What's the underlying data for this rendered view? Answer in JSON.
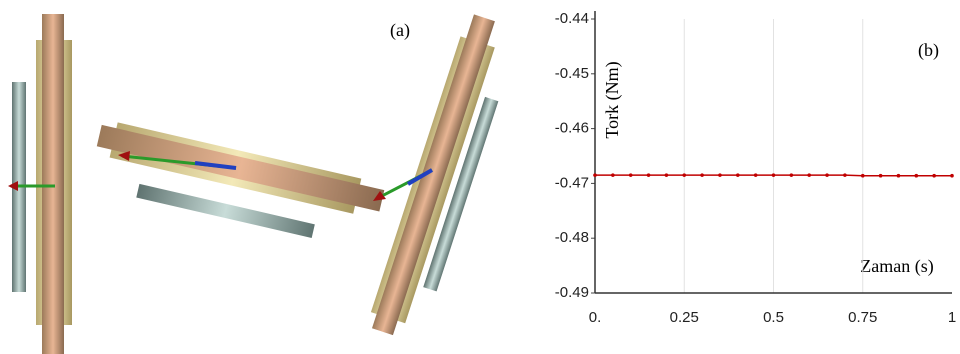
{
  "panel_a": {
    "label": "(a)"
  },
  "chart_data": {
    "type": "line",
    "annotation": "(b)",
    "ylabel": "Tork (Nm)",
    "xlabel": "Zaman (s)",
    "x": [
      0,
      0.05,
      0.1,
      0.15,
      0.2,
      0.25,
      0.3,
      0.35,
      0.4,
      0.45,
      0.5,
      0.55,
      0.6,
      0.65,
      0.7,
      0.75,
      0.8,
      0.85,
      0.9,
      0.95,
      1
    ],
    "series": [
      {
        "color": "#c00000",
        "values": [
          -0.4685,
          -0.4685,
          -0.4685,
          -0.4685,
          -0.4685,
          -0.4685,
          -0.4685,
          -0.4685,
          -0.4685,
          -0.4685,
          -0.4685,
          -0.4685,
          -0.4685,
          -0.4685,
          -0.4685,
          -0.4686,
          -0.4686,
          -0.4686,
          -0.4686,
          -0.4686,
          -0.4686
        ]
      }
    ],
    "xlim": [
      0,
      1
    ],
    "xticks": [
      {
        "value": 0,
        "label": "0."
      },
      0.25,
      0.5,
      0.75,
      1
    ],
    "ylim": [
      -0.49,
      -0.44
    ],
    "yticks": [
      -0.44,
      -0.45,
      -0.46,
      -0.47,
      -0.48,
      -0.49
    ],
    "grid": "x"
  }
}
